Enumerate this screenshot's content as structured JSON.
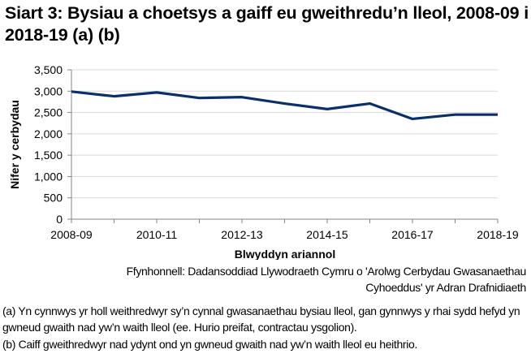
{
  "title": "Siart 3: Bysiau a choetsys a gaiff eu gweithredu’n lleol, 2008-09 i 2018-19 (a) (b)",
  "source": "Ffynhonnell: Dadansoddiad Llywodraeth Cymru o 'Arolwg Cerbydau Gwasanaethau Cyhoeddus' yr Adran Drafnidiaeth",
  "notes": {
    "a": "(a) Yn cynnwys yr holl weithredwyr sy’n cynnal gwasanaethau bysiau lleol, gan gynnwys y rhai sydd hefyd yn gwneud gwaith nad yw’n waith lleol (ee. Hurio preifat, contractau ysgolion).",
    "b": "(b) Caiff gweithredwyr nad ydynt ond yn gwneud gwaith nad yw’n waith lleol eu heithrio."
  },
  "colors": {
    "line": "#0b2f6b",
    "grid": "#d9d9d9",
    "axis": "#868686"
  },
  "chart_data": {
    "type": "line",
    "title": "Siart 3: Bysiau a choetsys a gaiff eu gweithredu’n lleol, 2008-09 i 2018-19 (a) (b)",
    "xlabel": "Blwyddyn ariannol",
    "ylabel": "Nifer y cerbydau",
    "ylim": [
      0,
      3500
    ],
    "yticks": [
      "0",
      "500",
      "1,000",
      "1,500",
      "2,000",
      "2,500",
      "3,000",
      "3,500"
    ],
    "x": [
      "2008-09",
      "2009-10",
      "2010-11",
      "2011-12",
      "2012-13",
      "2013-14",
      "2014-15",
      "2015-16",
      "2016-17",
      "2017-18",
      "2018-19"
    ],
    "xtick_labels": [
      "2008-09",
      "2010-11",
      "2012-13",
      "2014-15",
      "2016-17",
      "2018-19"
    ],
    "series": [
      {
        "name": "Bysiau a choetsys",
        "values": [
          2990,
          2880,
          2970,
          2840,
          2860,
          2710,
          2580,
          2710,
          2350,
          2450,
          2450
        ]
      }
    ],
    "grid": true,
    "legend": "none"
  }
}
